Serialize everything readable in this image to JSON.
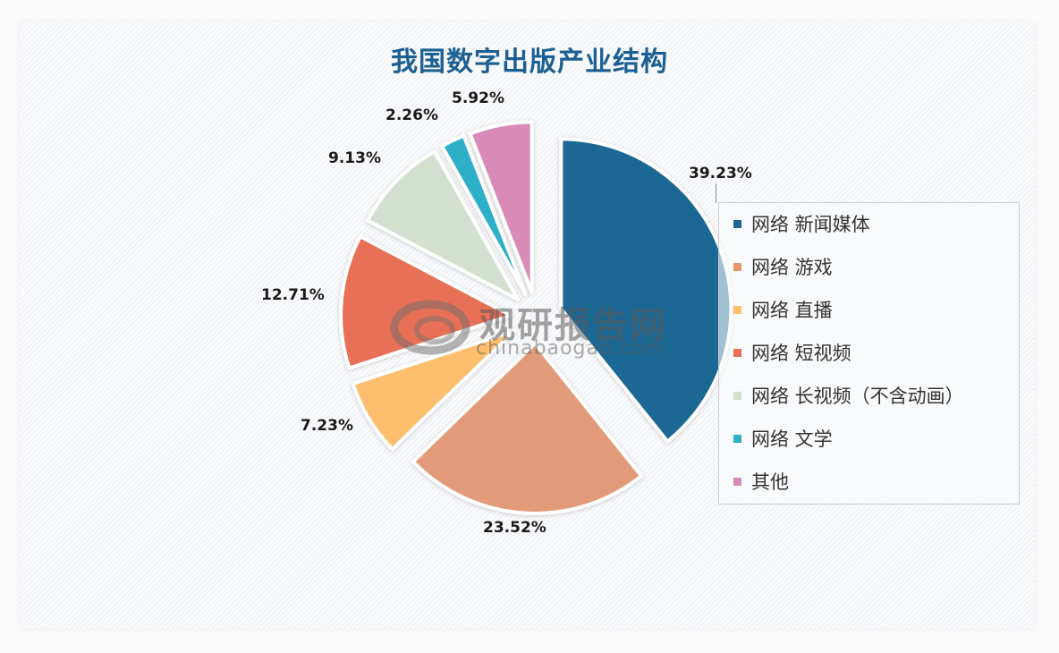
{
  "title": "我国数字出版产业结构",
  "chart_data": {
    "type": "pie",
    "title": "我国数字出版产业结构",
    "exploded": true,
    "start_angle": "12 o'clock, clockwise",
    "categories": [
      "网络新闻媒体",
      "网络游戏",
      "网络直播",
      "网络短视频",
      "网络长视频（不含动画）",
      "网络文学",
      "其他"
    ],
    "values": [
      39.23,
      23.52,
      7.23,
      12.71,
      9.13,
      2.26,
      5.92
    ],
    "labels": [
      "39.23%",
      "23.52%",
      "7.23%",
      "12.71%",
      "9.13%",
      "2.26%",
      "5.92%"
    ],
    "colors": [
      "#1b6794",
      "#e29b79",
      "#fdbe6e",
      "#e76f56",
      "#d3e0cf",
      "#2fafc8",
      "#d88bb9"
    ],
    "legend_position": "right"
  },
  "legend": {
    "items": [
      {
        "label": "网络 新闻媒体",
        "color": "#1b6794"
      },
      {
        "label": "网络 游戏",
        "color": "#e8946b"
      },
      {
        "label": "网络 直播",
        "color": "#fdbe6e"
      },
      {
        "label": "网络 短视频",
        "color": "#e76f56"
      },
      {
        "label": "网络 长视频（不含动画）",
        "color": "#cfe0cc"
      },
      {
        "label": "网络 文学",
        "color": "#2fafc8"
      },
      {
        "label": "其他",
        "color": "#d88bb9"
      }
    ]
  },
  "watermark": {
    "name": "观研报告网",
    "url": "chinabaogao.com"
  }
}
